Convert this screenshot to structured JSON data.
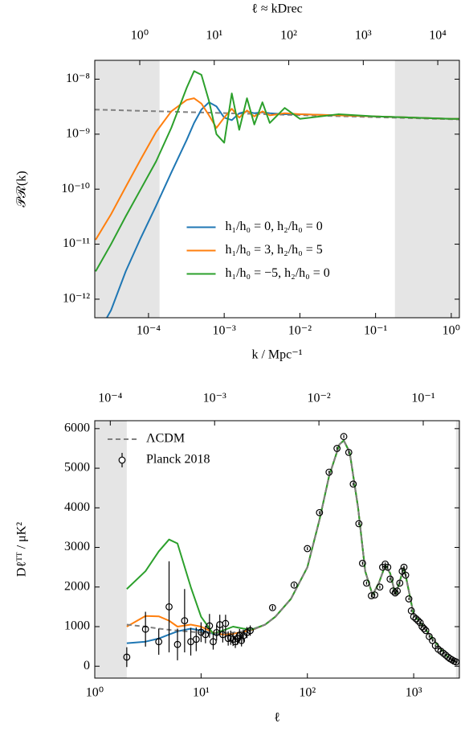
{
  "chart_data": [
    {
      "type": "line",
      "x2label": "ℓ ≈ kDrec",
      "xlabel": "k / Mpc⁻¹",
      "ylabel": "𝒫ℛ(k)",
      "xscale": "log",
      "yscale": "log",
      "x2scale": "log",
      "xlim": [
        1.95e-05,
        1.28
      ],
      "ylim": [
        4.6e-13,
        2.2e-08
      ],
      "x2lim": [
        0.249,
        19500
      ],
      "xticks": [
        {
          "value": 0.0001,
          "label": "10⁻⁴"
        },
        {
          "value": 0.001,
          "label": "10⁻³"
        },
        {
          "value": 0.01,
          "label": "10⁻²"
        },
        {
          "value": 0.1,
          "label": "10⁻¹"
        },
        {
          "value": 1,
          "label": "10⁰"
        }
      ],
      "yticks": [
        {
          "value": 1e-12,
          "label": "10⁻¹²"
        },
        {
          "value": 1e-11,
          "label": "10⁻¹¹"
        },
        {
          "value": 1e-10,
          "label": "10⁻¹⁰"
        },
        {
          "value": 1e-09,
          "label": "10⁻⁹"
        },
        {
          "value": 1e-08,
          "label": "10⁻⁸"
        }
      ],
      "x2ticks": [
        {
          "value": 1,
          "label": "10⁰"
        },
        {
          "value": 10,
          "label": "10¹"
        },
        {
          "value": 100,
          "label": "10²"
        },
        {
          "value": 1000,
          "label": "10³"
        },
        {
          "value": 10000,
          "label": "10⁴"
        }
      ],
      "shaded_regions": [
        [
          1.95e-05,
          0.00014
        ],
        [
          0.18,
          1.28
        ]
      ],
      "legend": "lower center",
      "x": [
        2e-05,
        3.2e-05,
        5e-05,
        7.9e-05,
        0.000126,
        0.0002,
        0.00032,
        0.0004,
        0.0005,
        0.00063,
        0.00079,
        0.001,
        0.00126,
        0.00158,
        0.002,
        0.0025,
        0.0032,
        0.004,
        0.0063,
        0.01,
        0.032,
        0.1,
        0.32,
        1.0,
        1.26
      ],
      "series": [
        {
          "color": "#808080",
          "dashed": true,
          "x": [
            1.95e-05,
            1.28
          ],
          "values": [
            2.8e-09,
            1.85e-09
          ]
        },
        {
          "name": "h₁/h₀ =   0,   h₂/h₀ = 0",
          "color": "#1f77b4",
          "values": [
            2e-13,
            6.3e-13,
            3.2e-12,
            1.3e-11,
            5e-11,
            2e-10,
            7.9e-10,
            1.6e-09,
            2.8e-09,
            3.8e-09,
            3.2e-09,
            2e-09,
            1.8e-09,
            2.4e-09,
            2.6e-09,
            2.4e-09,
            2.5e-09,
            2.4e-09,
            2.3e-09,
            2.3e-09,
            2.2e-09,
            2.1e-09,
            2e-09,
            1.9e-09,
            1.9e-09
          ]
        },
        {
          "name": "h₁/h₀ =   3,   h₂/h₀ = 5",
          "color": "#ff7f0e",
          "values": [
            1.2e-11,
            3.5e-11,
            1.1e-10,
            3.5e-10,
            1.1e-09,
            2.6e-09,
            4.2e-09,
            4.5e-09,
            3.6e-09,
            2.2e-09,
            1.3e-09,
            2e-09,
            2.9e-09,
            2e-09,
            2.7e-09,
            2.1e-09,
            2.6e-09,
            2.2e-09,
            2.4e-09,
            2.3e-09,
            2.2e-09,
            2.1e-09,
            2e-09,
            1.9e-09,
            1.9e-09
          ]
        },
        {
          "name": "h₁/h₀ = −5,   h₂/h₀ = 0",
          "color": "#2ca02c",
          "values": [
            3.2e-12,
            1e-11,
            3.2e-11,
            1e-10,
            3.2e-10,
            1.3e-09,
            7e-09,
            1.4e-08,
            1.2e-08,
            4e-09,
            1e-09,
            7e-10,
            5.5e-09,
            1.2e-09,
            4.5e-09,
            1.5e-09,
            3.8e-09,
            1.6e-09,
            3e-09,
            1.9e-09,
            2.3e-09,
            2.1e-09,
            2e-09,
            1.9e-09,
            1.9e-09
          ]
        }
      ]
    },
    {
      "type": "line",
      "xlabel": "ℓ",
      "ylabel": "Dℓᵀᵀ / μK²",
      "xscale": "log",
      "x2scale": "log",
      "xlim": [
        1,
        2690
      ],
      "ylim": [
        -300,
        6200
      ],
      "x2lim": [
        7.1e-05,
        0.222
      ],
      "xticks": [
        {
          "value": 1,
          "label": "10⁰"
        },
        {
          "value": 10,
          "label": "10¹"
        },
        {
          "value": 100,
          "label": "10²"
        },
        {
          "value": 1000,
          "label": "10³"
        }
      ],
      "yticks": [
        0,
        1000,
        2000,
        3000,
        4000,
        5000,
        6000
      ],
      "x2ticks": [
        {
          "value": 0.0001,
          "label": "10⁻⁴"
        },
        {
          "value": 0.001,
          "label": "10⁻³"
        },
        {
          "value": 0.01,
          "label": "10⁻²"
        },
        {
          "value": 0.1,
          "label": "10⁻¹"
        }
      ],
      "shaded_regions": [
        [
          1,
          2
        ],
        [
          2500,
          2690
        ]
      ],
      "legend": "upper left",
      "x": [
        2,
        3,
        4,
        5,
        6,
        8,
        10,
        13,
        16,
        20,
        25,
        30,
        40,
        50,
        70,
        100,
        130,
        160,
        200,
        220,
        250,
        300,
        350,
        410,
        470,
        540,
        600,
        675,
        750,
        810,
        900,
        1000,
        1200,
        1500,
        2000,
        2500
      ],
      "series": [
        {
          "color": "#1f77b4",
          "values": [
            580,
            620,
            700,
            800,
            880,
            950,
            900,
            820,
            800,
            820,
            860,
            910,
            1050,
            1250,
            1700,
            2500,
            3700,
            4800,
            5600,
            5700,
            5400,
            4000,
            2400,
            1800,
            2100,
            2550,
            2350,
            1800,
            2200,
            2500,
            1900,
            1300,
            1050,
            700,
            280,
            100
          ]
        },
        {
          "color": "#ff7f0e",
          "values": [
            1000,
            1270,
            1260,
            1150,
            1000,
            1050,
            1000,
            850,
            800,
            820,
            870,
            915,
            1050,
            1250,
            1700,
            2500,
            3700,
            4800,
            5600,
            5700,
            5400,
            4000,
            2400,
            1800,
            2100,
            2550,
            2350,
            1800,
            2200,
            2500,
            1900,
            1300,
            1050,
            700,
            280,
            100
          ]
        },
        {
          "color": "#2ca02c",
          "values": [
            1950,
            2400,
            2900,
            3200,
            3100,
            2000,
            1250,
            820,
            900,
            1000,
            950,
            930,
            1050,
            1250,
            1700,
            2500,
            3700,
            4800,
            5600,
            5700,
            5400,
            4000,
            2400,
            1800,
            2100,
            2550,
            2350,
            1800,
            2200,
            2500,
            1900,
            1300,
            1050,
            700,
            280,
            100
          ]
        },
        {
          "name": "ΛCDM",
          "color": "#808080",
          "dashed": true,
          "values": [
            1050,
            1000,
            950,
            920,
            900,
            870,
            850,
            830,
            830,
            850,
            880,
            920,
            1050,
            1250,
            1700,
            2500,
            3700,
            4800,
            5600,
            5700,
            5400,
            4000,
            2400,
            1800,
            2100,
            2550,
            2350,
            1800,
            2200,
            2500,
            1900,
            1300,
            1050,
            700,
            280,
            100
          ]
        },
        {
          "name": "Planck 2018",
          "color": "#000000",
          "marker": "o",
          "x": [
            2,
            3,
            4,
            5,
            6,
            7,
            8,
            9,
            10,
            11,
            12,
            13,
            14,
            15,
            16,
            17,
            18,
            19,
            20,
            21,
            22,
            23,
            24,
            25,
            27,
            29,
            47,
            75,
            100,
            130,
            160,
            190,
            220,
            245,
            270,
            305,
            330,
            360,
            400,
            430,
            480,
            510,
            540,
            570,
            600,
            640,
            670,
            700,
            740,
            780,
            810,
            840,
            900,
            950,
            1000,
            1050,
            1100,
            1150,
            1200,
            1250,
            1300,
            1400,
            1500,
            1600,
            1700,
            1800,
            1900,
            2000,
            2100,
            2200,
            2300,
            2400,
            2500
          ],
          "values": [
            230,
            935,
            620,
            1500,
            550,
            1150,
            620,
            680,
            860,
            800,
            1020,
            620,
            850,
            1050,
            800,
            1080,
            700,
            720,
            680,
            620,
            700,
            780,
            650,
            770,
            850,
            900,
            1480,
            2050,
            2970,
            3880,
            4900,
            5500,
            5800,
            5400,
            4600,
            3600,
            2600,
            2100,
            1780,
            1800,
            2000,
            2500,
            2580,
            2500,
            2200,
            1900,
            1850,
            1900,
            2100,
            2400,
            2500,
            2300,
            1700,
            1400,
            1250,
            1200,
            1150,
            1100,
            1000,
            950,
            900,
            750,
            650,
            520,
            430,
            380,
            330,
            280,
            230,
            190,
            160,
            130,
            110
          ],
          "errors": [
            250,
            440,
            330,
            1150,
            400,
            800,
            350,
            300,
            250,
            220,
            300,
            200,
            200,
            250,
            200,
            220,
            180,
            180,
            170,
            160,
            160,
            160,
            150,
            150,
            140,
            130,
            50,
            45,
            40,
            40,
            40,
            40,
            40,
            40,
            40,
            40,
            40,
            40,
            40,
            40,
            40,
            40,
            40,
            40,
            40,
            40,
            40,
            40,
            40,
            40,
            40,
            40,
            30,
            30,
            30,
            30,
            30,
            30,
            30,
            30,
            30,
            30,
            30,
            30,
            30,
            30,
            30,
            30,
            30,
            30,
            30,
            30,
            30
          ]
        }
      ]
    }
  ]
}
